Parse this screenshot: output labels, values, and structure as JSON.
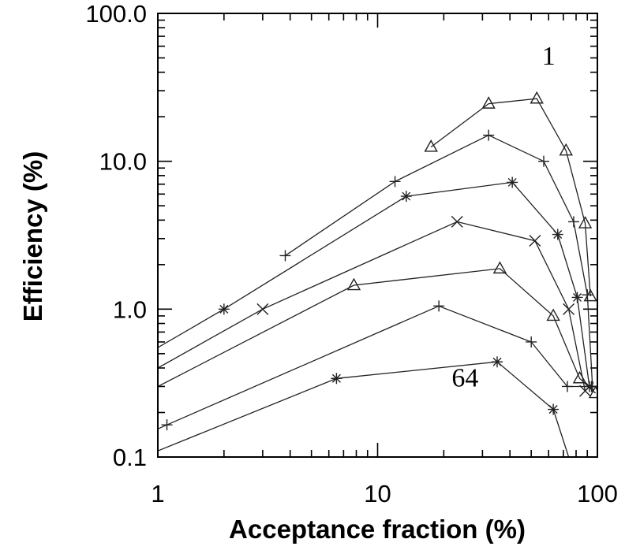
{
  "chart_data": {
    "type": "line",
    "xlabel": "Acceptance fraction (%)",
    "ylabel": "Efficiency (%)",
    "xscale": "log",
    "yscale": "log",
    "xlim": [
      1,
      100
    ],
    "ylim": [
      0.1,
      100
    ],
    "x_ticks": [
      {
        "value": 1,
        "label": "1"
      },
      {
        "value": 10,
        "label": "10"
      },
      {
        "value": 100,
        "label": "100"
      }
    ],
    "y_ticks": [
      {
        "value": 0.1,
        "label": "0.1"
      },
      {
        "value": 1,
        "label": "1.0"
      },
      {
        "value": 10,
        "label": "10.0"
      },
      {
        "value": 100,
        "label": "100.0"
      }
    ],
    "grid": false,
    "legend": "none",
    "annotations": [
      {
        "text": "1",
        "x": 60,
        "y": 45
      },
      {
        "text": "64",
        "x": 25,
        "y": 0.3
      }
    ],
    "series": [
      {
        "marker": "triangle",
        "points": [
          [
            17.5,
            12.5
          ],
          [
            32,
            24.5
          ],
          [
            53,
            26.5
          ],
          [
            72,
            11.8
          ],
          [
            88,
            3.8
          ],
          [
            93,
            1.22
          ]
        ]
      },
      {
        "marker": "plus",
        "points": [
          [
            3.8,
            2.3
          ],
          [
            12,
            7.3
          ],
          [
            32,
            15
          ],
          [
            57,
            10
          ],
          [
            78,
            3.9
          ],
          [
            90,
            1.25
          ],
          [
            95,
            0.3
          ]
        ]
      },
      {
        "marker": "asterisk",
        "points": [
          [
            1,
            0.55
          ],
          [
            2,
            1.0
          ],
          [
            13.5,
            5.8
          ],
          [
            41,
            7.2
          ],
          [
            66,
            3.2
          ],
          [
            81,
            1.2
          ],
          [
            92,
            0.3
          ]
        ]
      },
      {
        "marker": "cross",
        "points": [
          [
            1,
            0.4
          ],
          [
            3,
            1.0
          ],
          [
            23,
            3.9
          ],
          [
            52,
            2.9
          ],
          [
            74,
            1.0
          ],
          [
            88,
            0.28
          ]
        ]
      },
      {
        "marker": "triangle",
        "points": [
          [
            1,
            0.3
          ],
          [
            7.8,
            1.45
          ],
          [
            36,
            1.88
          ],
          [
            63,
            0.9
          ],
          [
            83,
            0.34
          ],
          [
            98,
            0.27
          ]
        ]
      },
      {
        "marker": "plus",
        "points": [
          [
            1,
            0.155
          ],
          [
            1.1,
            0.165
          ],
          [
            19,
            1.05
          ],
          [
            50,
            0.6
          ],
          [
            73,
            0.3
          ],
          [
            94,
            0.3
          ]
        ]
      },
      {
        "marker": "asterisk",
        "points": [
          [
            1,
            0.11
          ],
          [
            6.5,
            0.34
          ],
          [
            35,
            0.44
          ],
          [
            63,
            0.21
          ],
          [
            74,
            0.1
          ]
        ]
      }
    ]
  }
}
